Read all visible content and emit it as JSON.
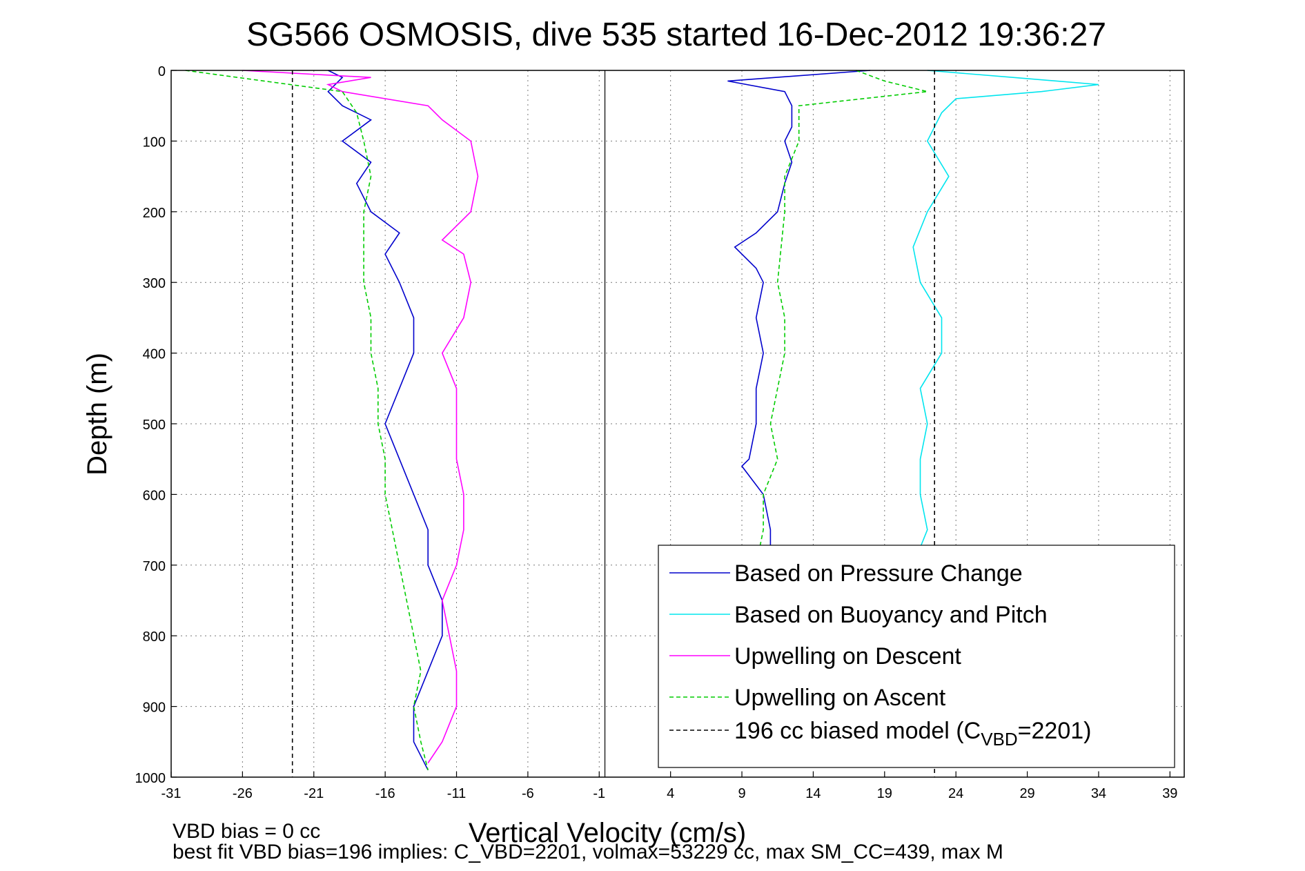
{
  "chart_data": {
    "type": "line",
    "title": "SG566 OSMOSIS, dive 535 started 16-Dec-2012 19:36:27",
    "xlabel": "Vertical Velocity (cm/s)",
    "ylabel": "Depth (m)",
    "xlim": [
      -31,
      40
    ],
    "ylim": [
      0,
      1000
    ],
    "y_reversed": true,
    "grid": true,
    "xticks": [
      -31,
      -26,
      -21,
      -16,
      -11,
      -6,
      -1,
      4,
      9,
      14,
      19,
      24,
      29,
      34,
      39
    ],
    "yticks": [
      0,
      100,
      200,
      300,
      400,
      500,
      600,
      700,
      800,
      900,
      1000
    ],
    "zero_line_x": -0.6,
    "legend": {
      "placement": "bottom-right",
      "entries": [
        {
          "label": "Based on Pressure Change",
          "color": "#0000cc",
          "style": "solid"
        },
        {
          "label": "Based on Buoyancy and Pitch",
          "color": "#00e5ee",
          "style": "solid"
        },
        {
          "label": "Upwelling on Descent",
          "color": "#ff00ff",
          "style": "solid"
        },
        {
          "label": "Upwelling on Ascent",
          "color": "#00cc00",
          "style": "dashed"
        },
        {
          "label_prefix": "196 cc biased model (C",
          "label_sub": "VBD",
          "label_suffix": "=2201)",
          "color": "#000000",
          "style": "dashed"
        }
      ]
    },
    "series": [
      {
        "name": "Based on Pressure Change",
        "color": "#0000cc",
        "dash": "",
        "depth": [
          0,
          10,
          30,
          50,
          70,
          100,
          130,
          160,
          200,
          230,
          260,
          300,
          350,
          400,
          450,
          500,
          550,
          600,
          650,
          700,
          750,
          800,
          850,
          900,
          950,
          990
        ],
        "values": [
          -20,
          -19,
          -20,
          -19,
          -17,
          -19,
          -17,
          -18,
          -17,
          -15,
          -16,
          -15,
          -14,
          -14,
          -15,
          -16,
          -15,
          -14,
          -13,
          -13,
          -12,
          -12,
          -13,
          -14,
          -14,
          -13
        ]
      },
      {
        "name": "Based on Pressure Change",
        "color": "#0000cc",
        "dash": "",
        "depth": [
          0,
          15,
          30,
          50,
          80,
          100,
          130,
          160,
          200,
          230,
          250,
          280,
          300,
          350,
          400,
          450,
          500,
          550,
          560,
          600,
          650,
          700
        ],
        "values": [
          18,
          8,
          12,
          12.5,
          12.5,
          12,
          12.5,
          12,
          11.5,
          10,
          8.5,
          10,
          10.5,
          10,
          10.5,
          10,
          10,
          9.5,
          9,
          10.5,
          11,
          11
        ]
      },
      {
        "name": "Based on Buoyancy and Pitch",
        "color": "#00e5ee",
        "dash": "",
        "depth": [
          0,
          10,
          20,
          30,
          40,
          60,
          100,
          150,
          200,
          250,
          300,
          350,
          400,
          450,
          500,
          550,
          600,
          650,
          700
        ],
        "values": [
          22,
          28,
          34,
          30,
          24,
          23,
          22,
          23.5,
          22,
          21,
          21.5,
          23,
          23,
          21.5,
          22,
          21.5,
          21.5,
          22,
          21
        ]
      },
      {
        "name": "Upwelling on Descent",
        "color": "#ff00ff",
        "dash": "",
        "depth": [
          0,
          10,
          20,
          30,
          50,
          70,
          100,
          150,
          200,
          240,
          260,
          300,
          350,
          400,
          450,
          500,
          550,
          600,
          650,
          700,
          750,
          800,
          850,
          900,
          950,
          980
        ],
        "values": [
          -26,
          -17,
          -20,
          -19,
          -13,
          -12,
          -10,
          -9.5,
          -10,
          -12,
          -10.5,
          -10,
          -10.5,
          -12,
          -11,
          -11,
          -11,
          -10.5,
          -10.5,
          -11,
          -12,
          -11.5,
          -11,
          -11,
          -12,
          -13
        ]
      },
      {
        "name": "Upwelling on Ascent",
        "color": "#00cc00",
        "dash": "6,4",
        "depth": [
          0,
          30,
          60,
          100,
          150,
          200,
          250,
          300,
          350,
          400,
          450,
          500,
          550,
          600,
          650,
          700,
          750,
          800,
          850,
          900,
          950,
          990
        ],
        "values": [
          -30,
          -19,
          -18,
          -17.5,
          -17,
          -17.5,
          -17.5,
          -17.5,
          -17,
          -17,
          -16.5,
          -16.5,
          -16,
          -16,
          -15.5,
          -15,
          -14.5,
          -14,
          -13.5,
          -14,
          -13.5,
          -13
        ]
      },
      {
        "name": "Upwelling on Ascent",
        "color": "#00cc00",
        "dash": "6,4",
        "depth": [
          0,
          15,
          30,
          50,
          100,
          150,
          200,
          300,
          350,
          400,
          450,
          500,
          550,
          600,
          650,
          700
        ],
        "values": [
          17,
          19,
          22,
          13,
          13,
          12,
          12,
          11.5,
          12,
          12,
          11.5,
          11,
          11.5,
          10.5,
          10.5,
          10
        ]
      },
      {
        "name": "196 cc biased model",
        "color": "#000000",
        "dash": "6,5",
        "depth": [
          0,
          1000
        ],
        "values": [
          -22.5,
          -22.5
        ]
      },
      {
        "name": "196 cc biased model",
        "color": "#000000",
        "dash": "6,5",
        "depth": [
          0,
          1000
        ],
        "values": [
          22.5,
          22.5
        ]
      }
    ],
    "footer_lines": [
      "VBD bias = 0 cc",
      "best fit VBD bias=196 implies: C_VBD=2201, volmax=53229 cc, max SM_CC=439, max M"
    ]
  }
}
